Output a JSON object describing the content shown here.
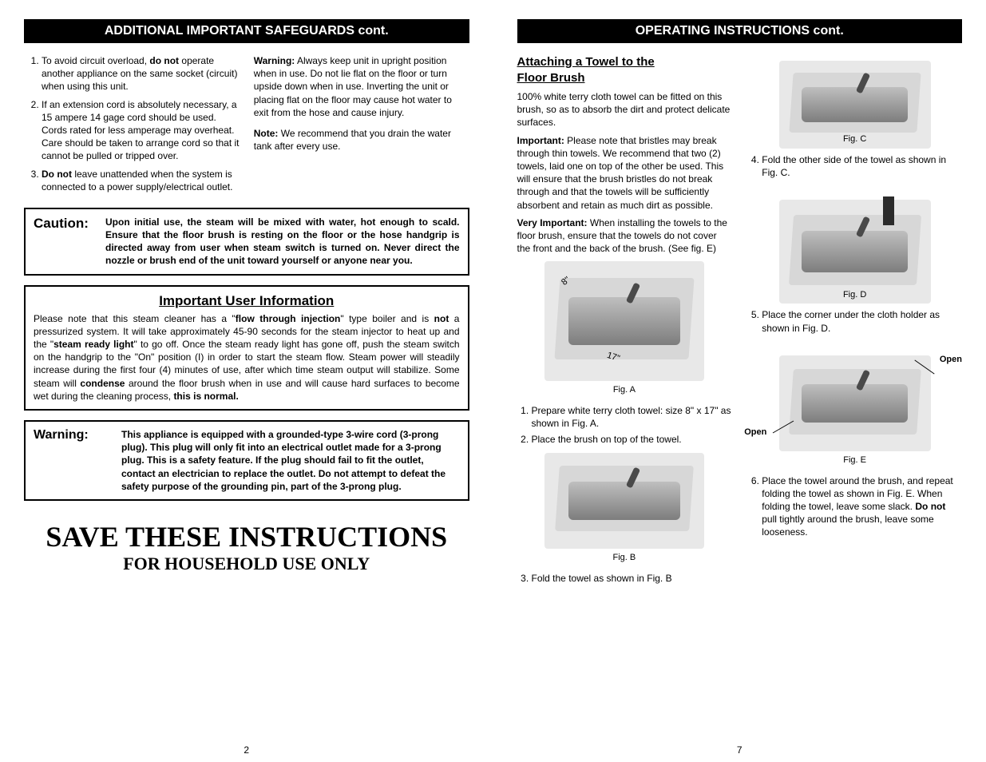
{
  "left": {
    "header": "ADDITIONAL IMPORTANT SAFEGUARDS  cont.",
    "safeguards": [
      "To avoid circuit overload, <b>do not</b> operate another appliance on the same socket (circuit) when using this unit.",
      "If an extension cord is absolutely necessary, a 15 ampere 14 gage cord should be used. Cords rated for less amperage may overheat.  Care should be taken to arrange cord so that it cannot be pulled or tripped over.",
      "<b>Do not</b> leave unattended when the system is connected to a power supply/electrical outlet."
    ],
    "warning_para": "<b>Warning:</b> Always keep unit in upright position when in use. Do not lie flat on the floor or turn upside down when in use. Inverting the unit or placing flat on the floor may cause hot water to exit from the hose and cause injury.",
    "note_para": "<b>Note:</b> We recommend that you drain the water tank after every use.",
    "caution_lead": "Caution:",
    "caution_body": "Upon initial use, the steam will be mixed with water, hot enough to scald. Ensure that the floor brush is resting on the floor or the hose handgrip is directed away from user when steam switch is turned on. Never direct the nozzle or brush end of the unit toward yourself or anyone near you.",
    "info_heading": "Important User Information",
    "info_body": "Please note that this steam cleaner has a \"<b>flow through injection</b>\" type boiler and is <b>not</b> a pressurized system. It will take approximately 45-90 seconds for the steam injector to heat up and the \"<b>steam ready light</b>\" to go off. Once the steam ready light has gone off, push the steam switch on the handgrip to the \"On\" position (I) in order to start the steam flow. Steam power will steadily increase during the first four (4) minutes of use, after which time steam output will stabilize. Some steam will <b>condense</b> around the floor brush when in use and will cause hard surfaces to become wet during the cleaning process, <b>this is normal.</b>",
    "warn2_lead": "Warning:",
    "warn2_body": "This appliance is equipped with a grounded-type 3-wire cord (3-prong plug). This plug will only fit into an electrical outlet made for a 3-prong plug.  This is a safety feature.  If the plug should fail to fit the outlet, contact an electrician to replace the outlet. Do not attempt to defeat the safety purpose of the grounding pin, part of the 3-prong plug.",
    "save_line": "SAVE THESE INSTRUCTIONS",
    "household_line": "FOR HOUSEHOLD USE ONLY",
    "page_num": "2"
  },
  "right": {
    "header": "OPERATING INSTRUCTIONS cont.",
    "sub_heading": "Attaching a Towel to the Floor Brush",
    "intro": "100% white terry cloth towel can be fitted on this brush, so as to absorb the dirt and protect delicate surfaces.",
    "important": "<b>Important:</b>  Please note that bristles may break through thin towels.  We recommend that two (2) towels, laid one on top of the other be used. This will ensure that the brush bristles do not break through and that the towels will be sufficiently absorbent and retain as much dirt as possible.",
    "very_important": "<b>Very Important:</b> When installing the towels to the floor brush, ensure that the towels do not cover the front and the back of the brush. (See fig. E)",
    "figA_label": "Fig. A",
    "figA_dims": {
      "w": "8\"",
      "h": "17\""
    },
    "step1": "Prepare white terry cloth towel: size 8\" x 17\" as shown in Fig. A.",
    "step2": "Place the brush on top of the towel.",
    "figB_label": "Fig. B",
    "step3": "Fold the towel as shown in Fig. B",
    "figC_label": "Fig. C",
    "step4": "Fold the other side of the towel as shown in Fig. C.",
    "figD_label": "Fig. D",
    "step5": "Place the corner under the cloth holder as shown in Fig. D.",
    "figE_label": "Fig. E",
    "open_label": "Open",
    "step6": "Place the towel around the brush, and repeat folding the towel as shown in Fig. E.  When folding the towel, leave some slack.  <b>Do not</b> pull tightly around the brush, leave some looseness.",
    "page_num": "7"
  },
  "colors": {
    "header_bg": "#000000",
    "header_fg": "#ffffff",
    "body_fg": "#000000",
    "border": "#000000",
    "fig_bg": "#e8e8e8",
    "towel": "#d7d7d7"
  }
}
